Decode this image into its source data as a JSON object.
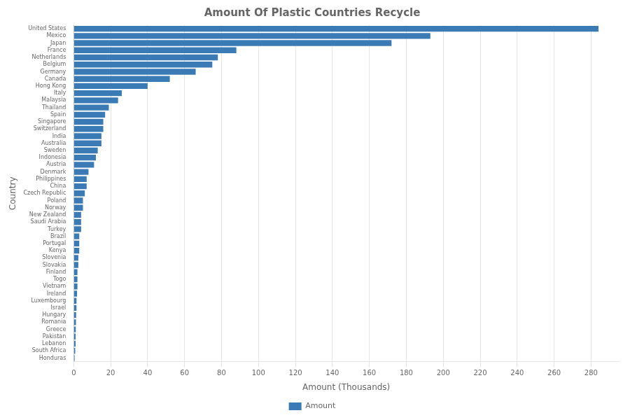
{
  "chart_data": {
    "type": "bar",
    "orientation": "horizontal",
    "title": "Amount Of Plastic Countries Recycle",
    "xlabel": "Amount (Thousands)",
    "ylabel": "Country",
    "categories": [
      "United States",
      "Mexico",
      "Japan",
      "France",
      "Netherlands",
      "Belgium",
      "Germany",
      "Canada",
      "Hong Kong",
      "Italy",
      "Malaysia",
      "Thailand",
      "Spain",
      "Singapore",
      "Switzerland",
      "India",
      "Australia",
      "Sweden",
      "Indonesia",
      "Austria",
      "Denmark",
      "Philippines",
      "China",
      "Czech Republic",
      "Poland",
      "Norway",
      "New Zealand",
      "Saudi Arabia",
      "Turkey",
      "Brazil",
      "Portugal",
      "Kenya",
      "Slovenia",
      "Slovakia",
      "Finland",
      "Togo",
      "Vietnam",
      "Ireland",
      "Luxembourg",
      "Israel",
      "Hungary",
      "Romania",
      "Greece",
      "Pakistan",
      "Lebanon",
      "South Africa",
      "Honduras"
    ],
    "series": [
      {
        "name": "Amount",
        "color": "#3a7ab5",
        "values": [
          284,
          193,
          172,
          88,
          78,
          75,
          66,
          52,
          40,
          26,
          24,
          19,
          17,
          16,
          16,
          15,
          15,
          13,
          12,
          11,
          8,
          7,
          7,
          6,
          5,
          5,
          4,
          4,
          4,
          3,
          3,
          3,
          2.5,
          2.5,
          2,
          2,
          2,
          1.8,
          1.5,
          1.5,
          1.3,
          1.2,
          1.1,
          1,
          1,
          0.8,
          0.5
        ]
      }
    ],
    "xlim": [
      0,
      295
    ],
    "xticks": [
      0,
      20,
      40,
      60,
      80,
      100,
      120,
      140,
      160,
      180,
      200,
      220,
      240,
      260,
      280
    ],
    "grid": true,
    "legend": "bottom"
  }
}
